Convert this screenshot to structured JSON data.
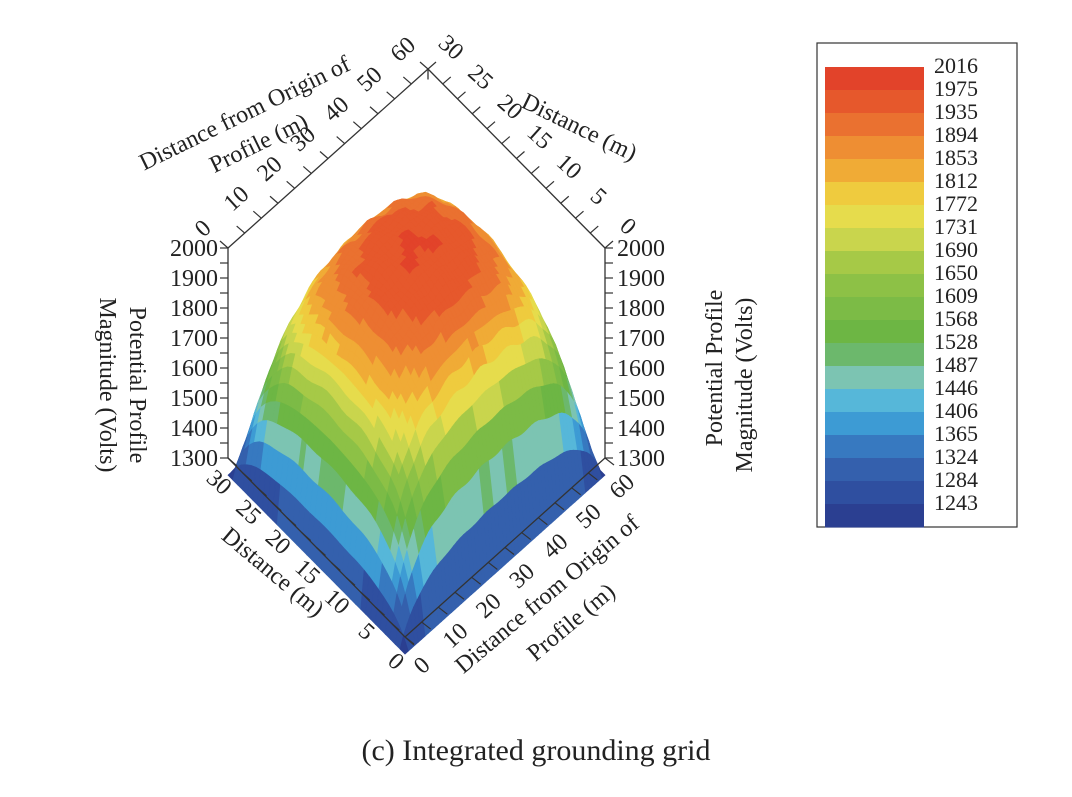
{
  "chart_data": {
    "type": "surface3d",
    "caption": "(c) Integrated grounding grid",
    "axes": {
      "profile": {
        "label_line1": "Distance from Origin of",
        "label_line2": "Profile (m)",
        "ticks": [
          0,
          10,
          20,
          30,
          40,
          50,
          60
        ],
        "range": [
          0,
          60
        ]
      },
      "distance": {
        "label": "Distance (m)",
        "ticks": [
          0,
          5,
          10,
          15,
          20,
          25,
          30
        ],
        "range": [
          0,
          30
        ]
      },
      "magnitude": {
        "label_line1": "Potential Profile",
        "label_line2": "Magnitude (Volts)",
        "ticks": [
          1300,
          1400,
          1500,
          1600,
          1700,
          1800,
          1900,
          2000
        ],
        "range": [
          1300,
          2000
        ]
      }
    },
    "surface": {
      "top_value": 2016,
      "corner_min_value": 1243,
      "x_range": [
        0,
        60
      ],
      "y_range": [
        0,
        30
      ]
    },
    "legend": {
      "placement": "right",
      "levels": [
        2016,
        1975,
        1935,
        1894,
        1853,
        1812,
        1772,
        1731,
        1690,
        1650,
        1609,
        1568,
        1528,
        1487,
        1446,
        1406,
        1365,
        1324,
        1284,
        1243
      ],
      "colors": [
        "#e2432a",
        "#e6582c",
        "#ea7130",
        "#ee8e33",
        "#f0ab36",
        "#efcb3e",
        "#e6dc4c",
        "#c9d54d",
        "#a6c947",
        "#8dc146",
        "#7cbb46",
        "#6db644",
        "#6cb86c",
        "#7cc4b2",
        "#56b7d9",
        "#3d9bd4",
        "#3779c0",
        "#3460ad",
        "#2f4fa0",
        "#2b3f91"
      ]
    }
  }
}
